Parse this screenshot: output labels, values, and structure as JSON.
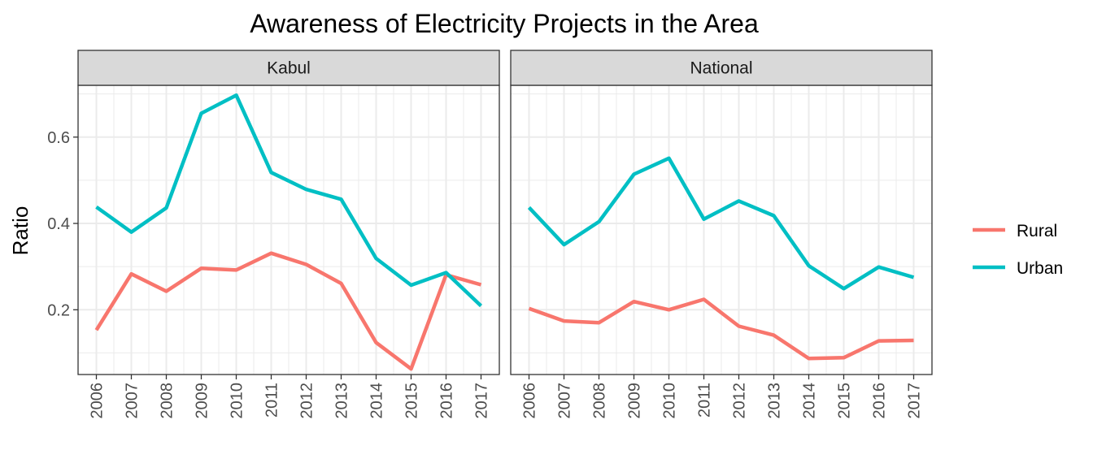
{
  "chart_data": {
    "type": "line",
    "title": "Awareness of Electricity Projects in the Area",
    "xlabel": "",
    "ylabel": "Ratio",
    "x": [
      "2006",
      "2007",
      "2008",
      "2009",
      "2010",
      "2011",
      "2012",
      "2013",
      "2014",
      "2015",
      "2016",
      "2017"
    ],
    "ylim": [
      0.05,
      0.72
    ],
    "yticks": [
      0.2,
      0.4,
      0.6
    ],
    "ytick_labels": [
      "0.2",
      "0.4",
      "0.6"
    ],
    "grid": true,
    "legend_position": "right",
    "panels": [
      {
        "label": "Kabul",
        "series": [
          {
            "name": "Rural",
            "color": "#F8766D",
            "values": [
              0.153,
              0.283,
              0.243,
              0.296,
              0.292,
              0.331,
              0.305,
              0.261,
              0.124,
              0.063,
              0.281,
              0.258
            ]
          },
          {
            "name": "Urban",
            "color": "#00BFC4",
            "values": [
              0.438,
              0.38,
              0.436,
              0.655,
              0.697,
              0.518,
              0.479,
              0.456,
              0.319,
              0.257,
              0.286,
              0.209
            ]
          }
        ]
      },
      {
        "label": "National",
        "series": [
          {
            "name": "Rural",
            "color": "#F8766D",
            "values": [
              0.203,
              0.174,
              0.17,
              0.219,
              0.2,
              0.224,
              0.162,
              0.141,
              0.087,
              0.089,
              0.128,
              0.129
            ]
          },
          {
            "name": "Urban",
            "color": "#00BFC4",
            "values": [
              0.437,
              0.351,
              0.404,
              0.514,
              0.551,
              0.41,
              0.452,
              0.418,
              0.302,
              0.249,
              0.299,
              0.275
            ]
          }
        ]
      }
    ],
    "legend": [
      {
        "name": "Rural",
        "color": "#F8766D"
      },
      {
        "name": "Urban",
        "color": "#00BFC4"
      }
    ]
  }
}
